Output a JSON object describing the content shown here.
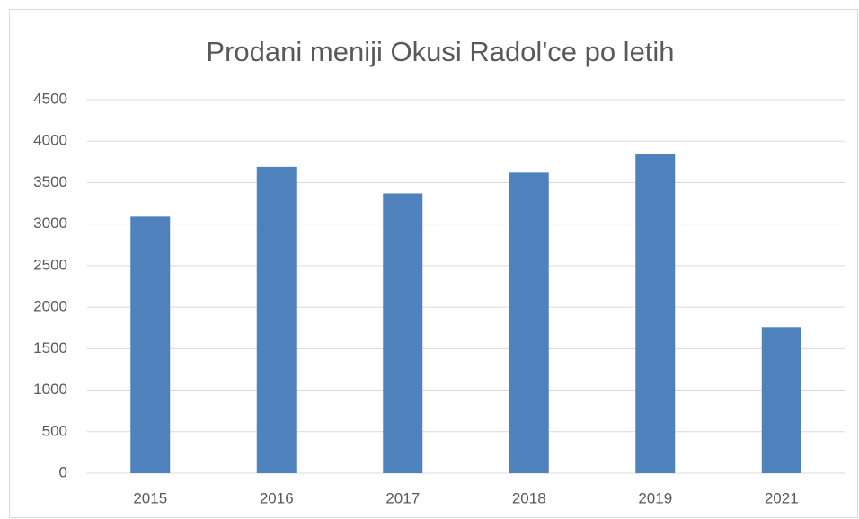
{
  "chart_data": {
    "type": "bar",
    "title": "Prodani meniji Okusi Radol'ce po letih",
    "categories": [
      "2015",
      "2016",
      "2017",
      "2018",
      "2019",
      "2021"
    ],
    "values": [
      3090,
      3690,
      3370,
      3620,
      3850,
      1760
    ],
    "color": "#4f81bd",
    "ylim": [
      0,
      4500
    ],
    "yticks": [
      0,
      500,
      1000,
      1500,
      2000,
      2500,
      3000,
      3500,
      4000,
      4500
    ],
    "grid": true
  }
}
